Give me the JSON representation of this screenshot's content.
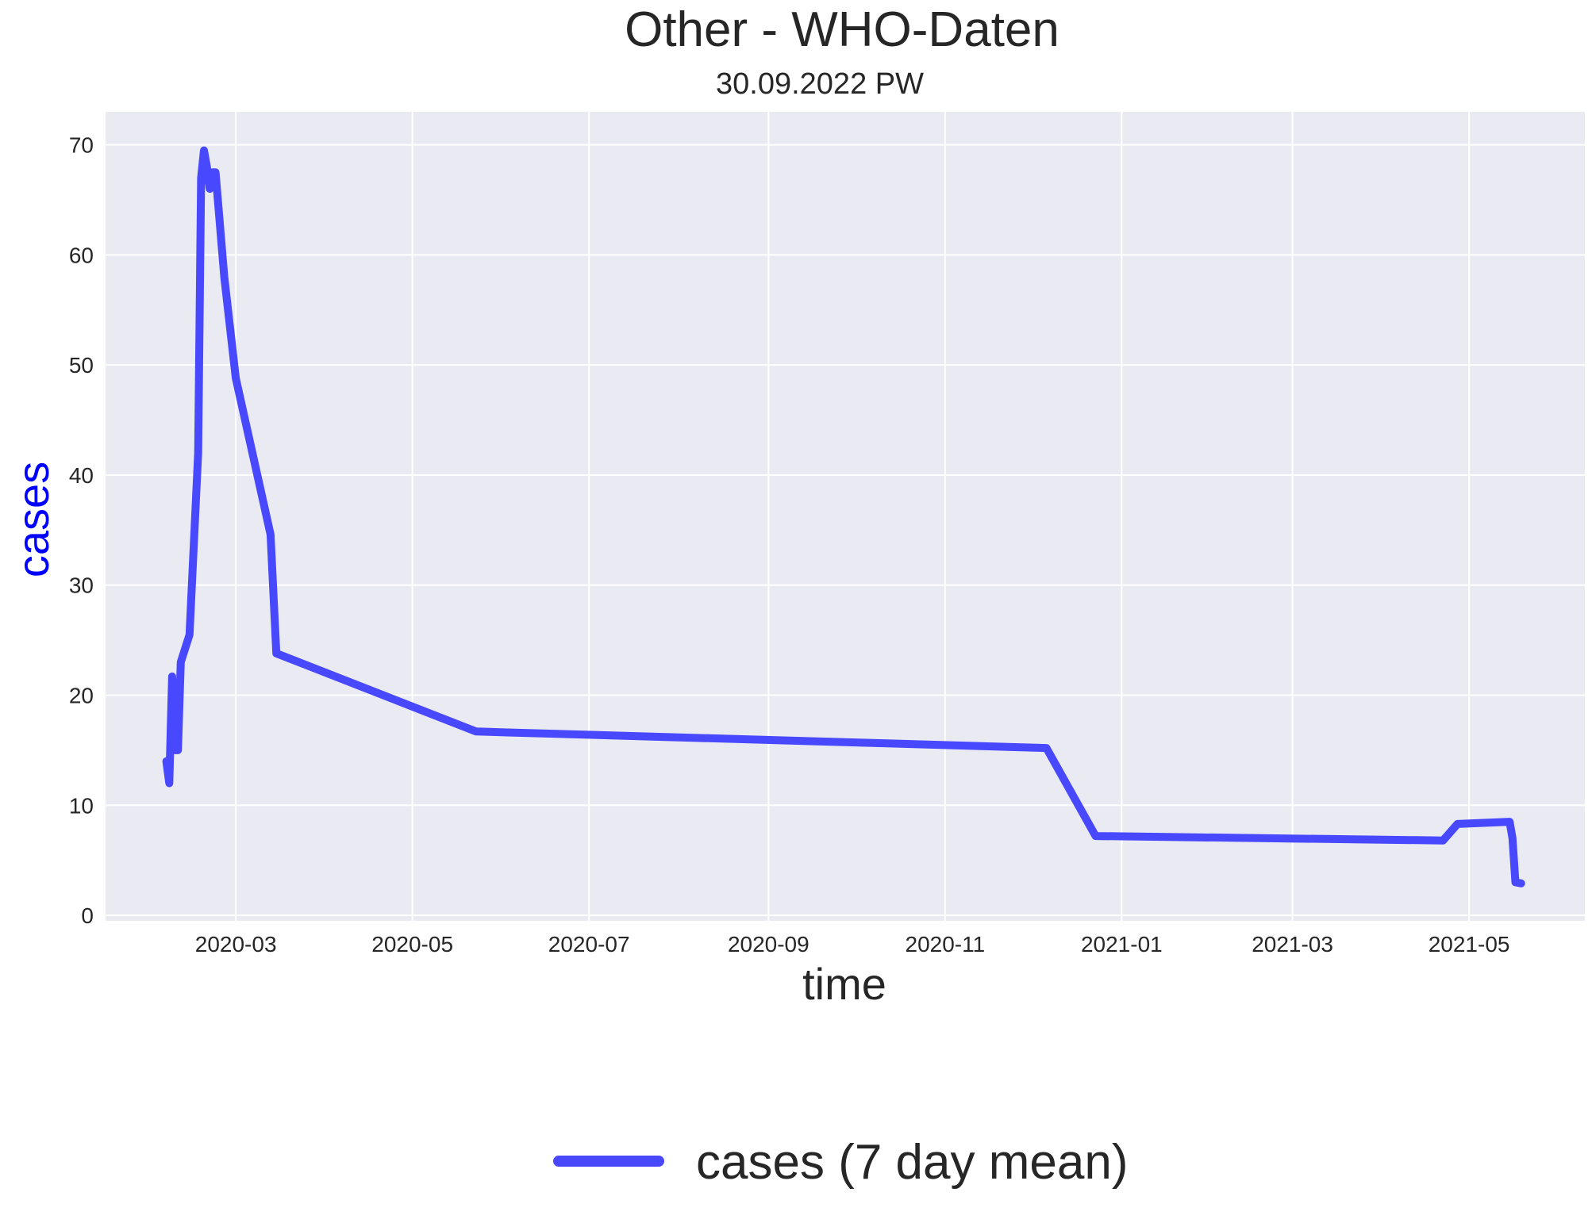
{
  "chart_data": {
    "type": "line",
    "title": "Other - WHO-Daten",
    "subtitle": "30.09.2022 PW",
    "xlabel": "time",
    "ylabel": "cases",
    "x_ticks": [
      "2020-03",
      "2020-05",
      "2020-07",
      "2020-09",
      "2020-11",
      "2021-01",
      "2021-03",
      "2021-05"
    ],
    "y_ticks": [
      0,
      10,
      20,
      30,
      40,
      50,
      60,
      70
    ],
    "xlim": [
      "2020-01-16",
      "2021-06-10"
    ],
    "ylim": [
      -0.5,
      73
    ],
    "grid": true,
    "legend_position": "bottom-center",
    "background_color": "#EAEAF2",
    "grid_color": "#FFFFFF",
    "ylabel_color": "#0000FF",
    "series": [
      {
        "name": "cases (7 day mean)",
        "color": "#4848FF",
        "x": [
          "2020-02-06",
          "2020-02-07",
          "2020-02-08",
          "2020-02-09",
          "2020-02-10",
          "2020-02-11",
          "2020-02-14",
          "2020-02-17",
          "2020-02-18",
          "2020-02-19",
          "2020-02-20",
          "2020-02-21",
          "2020-02-22",
          "2020-02-23",
          "2020-02-26",
          "2020-03-01",
          "2020-03-13",
          "2020-03-15",
          "2020-05-23",
          "2020-12-06",
          "2020-12-23",
          "2021-04-22",
          "2021-04-27",
          "2021-05-15",
          "2021-05-16",
          "2021-05-17",
          "2021-05-19"
        ],
        "y": [
          14,
          12,
          21.7,
          15,
          15,
          23,
          25.5,
          42,
          67,
          69.5,
          68,
          66,
          67.5,
          67.5,
          58,
          48.8,
          34.6,
          23.8,
          16.7,
          15.2,
          7.2,
          6.8,
          8.3,
          8.5,
          7,
          3,
          2.9
        ]
      }
    ]
  }
}
